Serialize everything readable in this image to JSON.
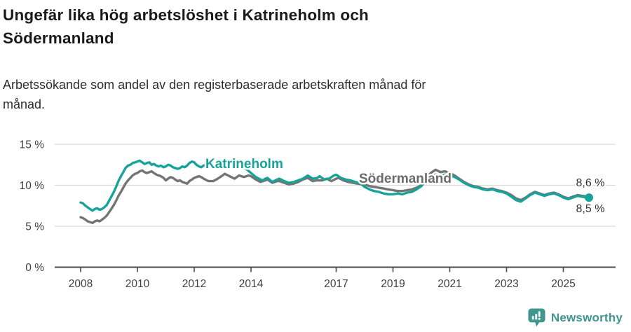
{
  "header": {
    "title": "Ungefär lika hög arbetslöshet i Katrineholm och\nSödermanland",
    "subtitle": "Arbetssökande som andel av den registerbaserade arbetskraften månad för\nmånad."
  },
  "chart_data": {
    "type": "line",
    "unit": "%",
    "grid": true,
    "x_axis": {
      "ticks": [
        2008,
        2010,
        2012,
        2014,
        2017,
        2019,
        2021,
        2023,
        2025
      ],
      "range_years": [
        2008,
        2026
      ]
    },
    "y_axis": {
      "ticks": [
        0,
        5,
        10,
        15
      ],
      "tick_labels": [
        "0 %",
        "5 %",
        "10 %",
        "15 %"
      ],
      "range": [
        0,
        15
      ]
    },
    "colors": {
      "katrineholm": "#18a39a",
      "sodermanland": "#747474",
      "gridline": "#d9d9d9",
      "axis": "#4d4d4d",
      "tick_label": "#404040",
      "end_label": "#333333"
    },
    "series": [
      {
        "name": "Södermanland",
        "color": "#747474",
        "label_color": "#6b6b6b",
        "end_label": "8,6 %",
        "end_value": 8.6,
        "end_dot": false,
        "points": [
          [
            2008.0,
            6.1
          ],
          [
            2008.08,
            6.0
          ],
          [
            2008.17,
            5.8
          ],
          [
            2008.25,
            5.6
          ],
          [
            2008.33,
            5.5
          ],
          [
            2008.42,
            5.4
          ],
          [
            2008.5,
            5.6
          ],
          [
            2008.58,
            5.7
          ],
          [
            2008.67,
            5.6
          ],
          [
            2008.75,
            5.8
          ],
          [
            2008.83,
            6.0
          ],
          [
            2008.92,
            6.3
          ],
          [
            2009.0,
            6.7
          ],
          [
            2009.08,
            7.1
          ],
          [
            2009.17,
            7.6
          ],
          [
            2009.25,
            8.1
          ],
          [
            2009.33,
            8.7
          ],
          [
            2009.42,
            9.2
          ],
          [
            2009.5,
            9.7
          ],
          [
            2009.58,
            10.2
          ],
          [
            2009.67,
            10.6
          ],
          [
            2009.75,
            10.9
          ],
          [
            2009.83,
            11.2
          ],
          [
            2009.92,
            11.4
          ],
          [
            2010.0,
            11.5
          ],
          [
            2010.08,
            11.7
          ],
          [
            2010.17,
            11.8
          ],
          [
            2010.25,
            11.6
          ],
          [
            2010.33,
            11.5
          ],
          [
            2010.42,
            11.6
          ],
          [
            2010.5,
            11.7
          ],
          [
            2010.58,
            11.5
          ],
          [
            2010.67,
            11.3
          ],
          [
            2010.75,
            11.2
          ],
          [
            2010.83,
            11.1
          ],
          [
            2010.92,
            10.9
          ],
          [
            2011.0,
            10.6
          ],
          [
            2011.08,
            10.8
          ],
          [
            2011.17,
            11.0
          ],
          [
            2011.25,
            10.9
          ],
          [
            2011.33,
            10.7
          ],
          [
            2011.42,
            10.5
          ],
          [
            2011.5,
            10.6
          ],
          [
            2011.58,
            10.4
          ],
          [
            2011.67,
            10.3
          ],
          [
            2011.75,
            10.2
          ],
          [
            2011.83,
            10.5
          ],
          [
            2011.92,
            10.7
          ],
          [
            2012.0,
            10.9
          ],
          [
            2012.08,
            11.0
          ],
          [
            2012.17,
            11.1
          ],
          [
            2012.25,
            11.0
          ],
          [
            2012.33,
            10.8
          ],
          [
            2012.5,
            10.5
          ],
          [
            2012.67,
            10.5
          ],
          [
            2012.83,
            10.8
          ],
          [
            2013.0,
            11.2
          ],
          [
            2013.08,
            11.4
          ],
          [
            2013.25,
            11.1
          ],
          [
            2013.42,
            10.8
          ],
          [
            2013.58,
            11.2
          ],
          [
            2013.75,
            11.0
          ],
          [
            2013.92,
            11.2
          ],
          [
            2014.0,
            11.1
          ],
          [
            2014.17,
            10.7
          ],
          [
            2014.33,
            10.4
          ],
          [
            2014.5,
            10.6
          ],
          [
            2014.58,
            10.7
          ],
          [
            2014.75,
            10.3
          ],
          [
            2014.92,
            10.5
          ],
          [
            2015.0,
            10.5
          ],
          [
            2015.17,
            10.3
          ],
          [
            2015.33,
            10.1
          ],
          [
            2015.5,
            10.2
          ],
          [
            2015.67,
            10.4
          ],
          [
            2015.83,
            10.7
          ],
          [
            2016.0,
            10.9
          ],
          [
            2016.17,
            10.5
          ],
          [
            2016.33,
            10.6
          ],
          [
            2016.5,
            10.6
          ],
          [
            2016.67,
            10.8
          ],
          [
            2016.83,
            10.5
          ],
          [
            2017.0,
            10.8
          ],
          [
            2017.08,
            10.9
          ],
          [
            2017.25,
            10.6
          ],
          [
            2017.42,
            10.4
          ],
          [
            2017.58,
            10.3
          ],
          [
            2017.75,
            10.2
          ],
          [
            2017.92,
            10.1
          ],
          [
            2018.0,
            10.1
          ],
          [
            2018.17,
            9.9
          ],
          [
            2018.33,
            9.8
          ],
          [
            2018.5,
            9.7
          ],
          [
            2018.67,
            9.6
          ],
          [
            2018.83,
            9.5
          ],
          [
            2019.0,
            9.4
          ],
          [
            2019.17,
            9.3
          ],
          [
            2019.33,
            9.3
          ],
          [
            2019.5,
            9.4
          ],
          [
            2019.67,
            9.5
          ],
          [
            2019.83,
            9.7
          ],
          [
            2020.0,
            10.0
          ],
          [
            2020.17,
            10.8
          ],
          [
            2020.33,
            11.5
          ],
          [
            2020.5,
            11.9
          ],
          [
            2020.67,
            11.6
          ],
          [
            2020.83,
            11.7
          ],
          [
            2021.0,
            11.5
          ],
          [
            2021.17,
            11.2
          ],
          [
            2021.33,
            10.8
          ],
          [
            2021.5,
            10.4
          ],
          [
            2021.67,
            10.1
          ],
          [
            2021.83,
            9.9
          ],
          [
            2022.0,
            9.8
          ],
          [
            2022.17,
            9.6
          ],
          [
            2022.33,
            9.5
          ],
          [
            2022.5,
            9.6
          ],
          [
            2022.67,
            9.4
          ],
          [
            2022.83,
            9.3
          ],
          [
            2023.0,
            9.1
          ],
          [
            2023.17,
            8.8
          ],
          [
            2023.33,
            8.4
          ],
          [
            2023.5,
            8.2
          ],
          [
            2023.67,
            8.5
          ],
          [
            2023.83,
            8.9
          ],
          [
            2024.0,
            9.2
          ],
          [
            2024.17,
            9.0
          ],
          [
            2024.33,
            8.8
          ],
          [
            2024.5,
            9.0
          ],
          [
            2024.67,
            9.1
          ],
          [
            2024.83,
            8.9
          ],
          [
            2025.0,
            8.6
          ],
          [
            2025.17,
            8.4
          ],
          [
            2025.33,
            8.6
          ],
          [
            2025.5,
            8.8
          ],
          [
            2025.67,
            8.7
          ],
          [
            2025.9,
            8.6
          ]
        ]
      },
      {
        "name": "Katrineholm",
        "color": "#18a39a",
        "label_color": "#18a39a",
        "end_label": "8,5 %",
        "end_value": 8.5,
        "end_dot": true,
        "points": [
          [
            2008.0,
            7.9
          ],
          [
            2008.08,
            7.8
          ],
          [
            2008.17,
            7.5
          ],
          [
            2008.25,
            7.3
          ],
          [
            2008.33,
            7.1
          ],
          [
            2008.42,
            6.9
          ],
          [
            2008.5,
            7.1
          ],
          [
            2008.58,
            7.2
          ],
          [
            2008.67,
            7.0
          ],
          [
            2008.75,
            7.1
          ],
          [
            2008.83,
            7.3
          ],
          [
            2008.92,
            7.6
          ],
          [
            2009.0,
            8.1
          ],
          [
            2009.08,
            8.6
          ],
          [
            2009.17,
            9.2
          ],
          [
            2009.25,
            9.8
          ],
          [
            2009.33,
            10.5
          ],
          [
            2009.42,
            11.1
          ],
          [
            2009.5,
            11.6
          ],
          [
            2009.58,
            12.1
          ],
          [
            2009.67,
            12.4
          ],
          [
            2009.75,
            12.5
          ],
          [
            2009.83,
            12.7
          ],
          [
            2009.92,
            12.8
          ],
          [
            2010.0,
            12.9
          ],
          [
            2010.08,
            13.0
          ],
          [
            2010.17,
            12.8
          ],
          [
            2010.25,
            12.6
          ],
          [
            2010.33,
            12.7
          ],
          [
            2010.42,
            12.8
          ],
          [
            2010.5,
            12.5
          ],
          [
            2010.58,
            12.6
          ],
          [
            2010.67,
            12.4
          ],
          [
            2010.75,
            12.3
          ],
          [
            2010.83,
            12.4
          ],
          [
            2010.92,
            12.2
          ],
          [
            2011.0,
            12.3
          ],
          [
            2011.08,
            12.5
          ],
          [
            2011.17,
            12.4
          ],
          [
            2011.25,
            12.2
          ],
          [
            2011.33,
            12.1
          ],
          [
            2011.42,
            12.0
          ],
          [
            2011.5,
            12.1
          ],
          [
            2011.58,
            12.3
          ],
          [
            2011.67,
            12.2
          ],
          [
            2011.75,
            12.4
          ],
          [
            2011.83,
            12.7
          ],
          [
            2011.92,
            12.9
          ],
          [
            2012.0,
            12.8
          ],
          [
            2012.08,
            12.5
          ],
          [
            2012.17,
            12.3
          ],
          [
            2012.25,
            12.2
          ],
          [
            2012.33,
            12.4
          ],
          [
            2012.5,
            12.6
          ],
          [
            2012.67,
            12.4
          ],
          [
            2012.83,
            12.5
          ],
          [
            2013.0,
            12.8
          ],
          [
            2013.17,
            13.0
          ],
          [
            2013.33,
            12.8
          ],
          [
            2013.5,
            12.5
          ],
          [
            2013.67,
            12.3
          ],
          [
            2013.83,
            12.0
          ],
          [
            2014.0,
            11.5
          ],
          [
            2014.17,
            11.0
          ],
          [
            2014.33,
            10.7
          ],
          [
            2014.42,
            10.6
          ],
          [
            2014.5,
            10.8
          ],
          [
            2014.58,
            10.9
          ],
          [
            2014.75,
            10.4
          ],
          [
            2014.92,
            10.7
          ],
          [
            2015.0,
            10.8
          ],
          [
            2015.17,
            10.5
          ],
          [
            2015.33,
            10.3
          ],
          [
            2015.5,
            10.4
          ],
          [
            2015.67,
            10.6
          ],
          [
            2015.83,
            10.8
          ],
          [
            2016.0,
            11.2
          ],
          [
            2016.17,
            10.8
          ],
          [
            2016.33,
            10.9
          ],
          [
            2016.42,
            11.1
          ],
          [
            2016.58,
            10.7
          ],
          [
            2016.75,
            10.8
          ],
          [
            2016.92,
            11.2
          ],
          [
            2017.0,
            11.3
          ],
          [
            2017.17,
            10.9
          ],
          [
            2017.33,
            10.7
          ],
          [
            2017.5,
            10.6
          ],
          [
            2017.67,
            10.4
          ],
          [
            2017.83,
            10.3
          ],
          [
            2018.0,
            9.8
          ],
          [
            2018.17,
            9.5
          ],
          [
            2018.33,
            9.3
          ],
          [
            2018.5,
            9.2
          ],
          [
            2018.67,
            9.0
          ],
          [
            2018.83,
            8.9
          ],
          [
            2019.0,
            8.9
          ],
          [
            2019.17,
            9.0
          ],
          [
            2019.33,
            8.9
          ],
          [
            2019.5,
            9.1
          ],
          [
            2019.67,
            9.2
          ],
          [
            2019.83,
            9.5
          ],
          [
            2020.0,
            9.9
          ],
          [
            2020.17,
            10.6
          ],
          [
            2020.33,
            11.1
          ],
          [
            2020.5,
            11.3
          ],
          [
            2020.67,
            11.2
          ],
          [
            2020.83,
            11.3
          ],
          [
            2021.0,
            11.2
          ],
          [
            2021.17,
            11.0
          ],
          [
            2021.33,
            10.7
          ],
          [
            2021.5,
            10.3
          ],
          [
            2021.67,
            10.0
          ],
          [
            2021.83,
            9.8
          ],
          [
            2022.0,
            9.7
          ],
          [
            2022.17,
            9.5
          ],
          [
            2022.33,
            9.4
          ],
          [
            2022.5,
            9.5
          ],
          [
            2022.67,
            9.3
          ],
          [
            2022.83,
            9.2
          ],
          [
            2023.0,
            9.0
          ],
          [
            2023.17,
            8.6
          ],
          [
            2023.33,
            8.2
          ],
          [
            2023.5,
            8.0
          ],
          [
            2023.67,
            8.4
          ],
          [
            2023.83,
            8.8
          ],
          [
            2024.0,
            9.1
          ],
          [
            2024.17,
            8.9
          ],
          [
            2024.33,
            8.7
          ],
          [
            2024.5,
            8.9
          ],
          [
            2024.67,
            9.0
          ],
          [
            2024.83,
            8.8
          ],
          [
            2025.0,
            8.5
          ],
          [
            2025.17,
            8.3
          ],
          [
            2025.33,
            8.5
          ],
          [
            2025.5,
            8.7
          ],
          [
            2025.67,
            8.6
          ],
          [
            2025.9,
            8.5
          ]
        ]
      }
    ]
  },
  "footer": {
    "brand": "Newsworthy",
    "brand_color": "#3f968e"
  }
}
